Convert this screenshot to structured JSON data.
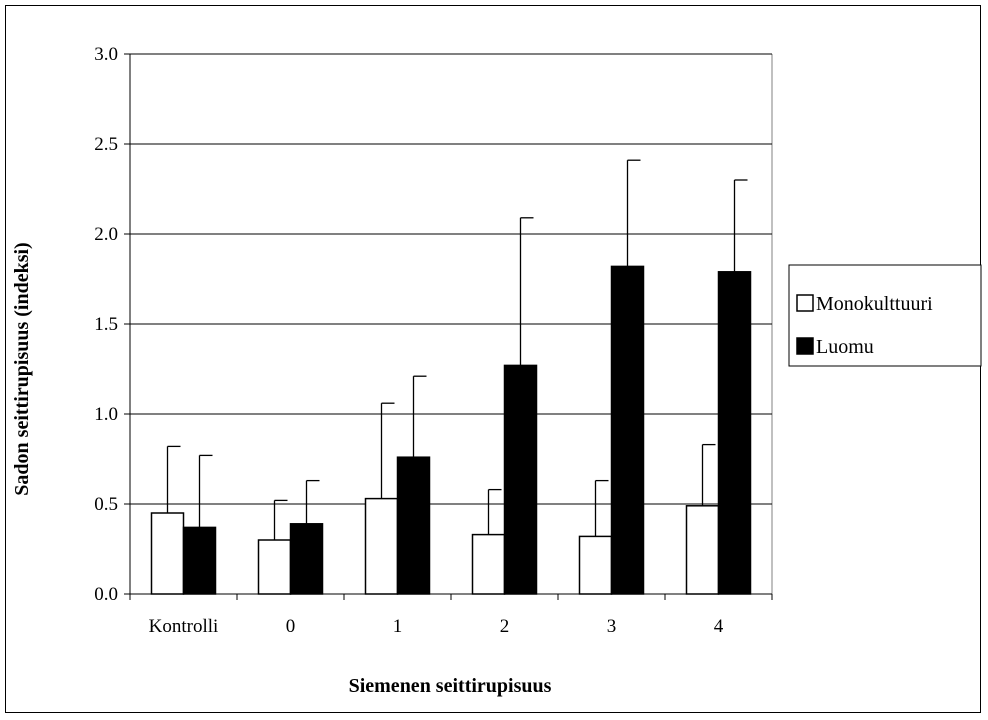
{
  "chart_data": {
    "type": "bar",
    "title": "",
    "xlabel": "Siemenen seittirupisuus",
    "ylabel": "Sadon seittirupisuus (indeksi)",
    "categories": [
      "Kontrolli",
      "0",
      "1",
      "2",
      "3",
      "4"
    ],
    "ylim": [
      0,
      3
    ],
    "yticks": [
      "0.0",
      "0.5",
      "1.0",
      "1.5",
      "2.0",
      "2.5",
      "3.0"
    ],
    "grid": true,
    "legend_position": "right",
    "series": [
      {
        "name": "Monokulttuuri",
        "color": "#ffffff",
        "values": [
          0.45,
          0.3,
          0.53,
          0.33,
          0.32,
          0.49
        ],
        "error": [
          0.37,
          0.22,
          0.53,
          0.25,
          0.31,
          0.34
        ]
      },
      {
        "name": "Luomu",
        "color": "#000000",
        "values": [
          0.37,
          0.39,
          0.76,
          1.27,
          1.82,
          1.79
        ],
        "error": [
          0.4,
          0.24,
          0.45,
          0.82,
          0.59,
          0.51
        ]
      }
    ]
  }
}
